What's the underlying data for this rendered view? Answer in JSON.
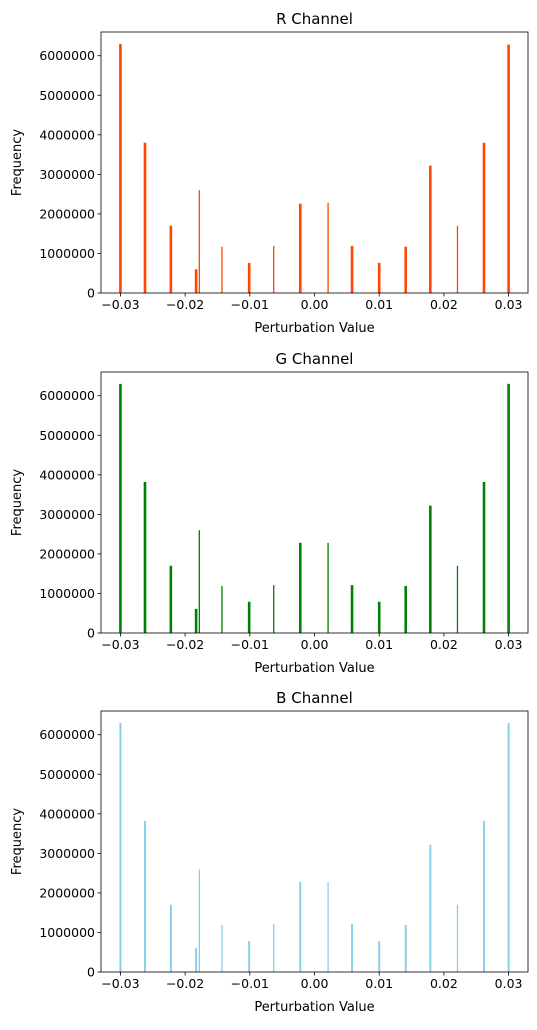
{
  "chart_data": [
    {
      "type": "bar",
      "title": "R Channel",
      "xlabel": "Perturbation Value",
      "ylabel": "Frequency",
      "color": "#ff4500",
      "xlim": [
        -0.033,
        0.033
      ],
      "ylim": [
        0,
        6600000
      ],
      "xticks": [
        -0.03,
        -0.02,
        -0.01,
        0.0,
        0.01,
        0.02,
        0.03
      ],
      "xtick_labels": [
        "−0.03",
        "−0.02",
        "−0.01",
        "0.00",
        "0.01",
        "0.02",
        "0.03"
      ],
      "yticks": [
        0,
        1000000,
        2000000,
        3000000,
        4000000,
        5000000,
        6000000
      ],
      "ytick_labels": [
        "0",
        "1000000",
        "2000000",
        "3000000",
        "4000000",
        "5000000",
        "6000000"
      ],
      "bars": [
        {
          "x": -0.03,
          "value": 6300000,
          "width": 0.0004
        },
        {
          "x": -0.0262,
          "value": 3800000,
          "width": 0.0004
        },
        {
          "x": -0.0222,
          "value": 1700000,
          "width": 0.0004
        },
        {
          "x": -0.0183,
          "value": 600000,
          "width": 0.0004
        },
        {
          "x": -0.0178,
          "value": 2600000,
          "width": 0.0002
        },
        {
          "x": -0.0143,
          "value": 1170000,
          "width": 0.0002
        },
        {
          "x": -0.0101,
          "value": 760000,
          "width": 0.0004
        },
        {
          "x": -0.0063,
          "value": 1190000,
          "width": 0.0002
        },
        {
          "x": -0.0022,
          "value": 2260000,
          "width": 0.0004
        },
        {
          "x": 0.0021,
          "value": 2280000,
          "width": 0.0002
        },
        {
          "x": 0.0058,
          "value": 1190000,
          "width": 0.0004
        },
        {
          "x": 0.01,
          "value": 760000,
          "width": 0.0004
        },
        {
          "x": 0.0141,
          "value": 1170000,
          "width": 0.0004
        },
        {
          "x": 0.0179,
          "value": 3220000,
          "width": 0.0004
        },
        {
          "x": 0.0221,
          "value": 1700000,
          "width": 0.0002
        },
        {
          "x": 0.0262,
          "value": 3800000,
          "width": 0.0004
        },
        {
          "x": 0.03,
          "value": 6280000,
          "width": 0.0004
        }
      ]
    },
    {
      "type": "bar",
      "title": "G Channel",
      "xlabel": "Perturbation Value",
      "ylabel": "Frequency",
      "color": "#008000",
      "xlim": [
        -0.033,
        0.033
      ],
      "ylim": [
        0,
        6600000
      ],
      "xticks": [
        -0.03,
        -0.02,
        -0.01,
        0.0,
        0.01,
        0.02,
        0.03
      ],
      "xtick_labels": [
        "−0.03",
        "−0.02",
        "−0.01",
        "0.00",
        "0.01",
        "0.02",
        "0.03"
      ],
      "yticks": [
        0,
        1000000,
        2000000,
        3000000,
        4000000,
        5000000,
        6000000
      ],
      "ytick_labels": [
        "0",
        "1000000",
        "2000000",
        "3000000",
        "4000000",
        "5000000",
        "6000000"
      ],
      "bars": [
        {
          "x": -0.03,
          "value": 6300000,
          "width": 0.0004
        },
        {
          "x": -0.0262,
          "value": 3820000,
          "width": 0.0004
        },
        {
          "x": -0.0222,
          "value": 1700000,
          "width": 0.0004
        },
        {
          "x": -0.0183,
          "value": 610000,
          "width": 0.0004
        },
        {
          "x": -0.0178,
          "value": 2600000,
          "width": 0.0002
        },
        {
          "x": -0.0143,
          "value": 1190000,
          "width": 0.0002
        },
        {
          "x": -0.0101,
          "value": 790000,
          "width": 0.0004
        },
        {
          "x": -0.0063,
          "value": 1210000,
          "width": 0.0002
        },
        {
          "x": -0.0022,
          "value": 2280000,
          "width": 0.0004
        },
        {
          "x": 0.0021,
          "value": 2280000,
          "width": 0.0002
        },
        {
          "x": 0.0058,
          "value": 1210000,
          "width": 0.0004
        },
        {
          "x": 0.01,
          "value": 790000,
          "width": 0.0004
        },
        {
          "x": 0.0141,
          "value": 1190000,
          "width": 0.0004
        },
        {
          "x": 0.0179,
          "value": 3220000,
          "width": 0.0004
        },
        {
          "x": 0.0221,
          "value": 1700000,
          "width": 0.0002
        },
        {
          "x": 0.0262,
          "value": 3820000,
          "width": 0.0004
        },
        {
          "x": 0.03,
          "value": 6300000,
          "width": 0.0004
        }
      ]
    },
    {
      "type": "bar",
      "title": "B Channel",
      "xlabel": "Perturbation Value",
      "ylabel": "Frequency",
      "color": "#87ceeb",
      "xlim": [
        -0.033,
        0.033
      ],
      "ylim": [
        0,
        6600000
      ],
      "xticks": [
        -0.03,
        -0.02,
        -0.01,
        0.0,
        0.01,
        0.02,
        0.03
      ],
      "xtick_labels": [
        "−0.03",
        "−0.02",
        "−0.01",
        "0.00",
        "0.01",
        "0.02",
        "0.03"
      ],
      "yticks": [
        0,
        1000000,
        2000000,
        3000000,
        4000000,
        5000000,
        6000000
      ],
      "ytick_labels": [
        "0",
        "1000000",
        "2000000",
        "3000000",
        "4000000",
        "5000000",
        "6000000"
      ],
      "bars": [
        {
          "x": -0.03,
          "value": 6300000,
          "width": 0.0003
        },
        {
          "x": -0.0262,
          "value": 3820000,
          "width": 0.0003
        },
        {
          "x": -0.0222,
          "value": 1700000,
          "width": 0.0003
        },
        {
          "x": -0.0183,
          "value": 610000,
          "width": 0.0003
        },
        {
          "x": -0.0178,
          "value": 2600000,
          "width": 0.0002
        },
        {
          "x": -0.0143,
          "value": 1190000,
          "width": 0.0002
        },
        {
          "x": -0.0101,
          "value": 780000,
          "width": 0.0003
        },
        {
          "x": -0.0063,
          "value": 1210000,
          "width": 0.0002
        },
        {
          "x": -0.0022,
          "value": 2280000,
          "width": 0.0003
        },
        {
          "x": 0.0021,
          "value": 2280000,
          "width": 0.0002
        },
        {
          "x": 0.0058,
          "value": 1210000,
          "width": 0.0003
        },
        {
          "x": 0.01,
          "value": 780000,
          "width": 0.0003
        },
        {
          "x": 0.0141,
          "value": 1190000,
          "width": 0.0003
        },
        {
          "x": 0.0179,
          "value": 3220000,
          "width": 0.0003
        },
        {
          "x": 0.0221,
          "value": 1700000,
          "width": 0.0002
        },
        {
          "x": 0.0262,
          "value": 3820000,
          "width": 0.0003
        },
        {
          "x": 0.03,
          "value": 6300000,
          "width": 0.0003
        }
      ]
    }
  ]
}
